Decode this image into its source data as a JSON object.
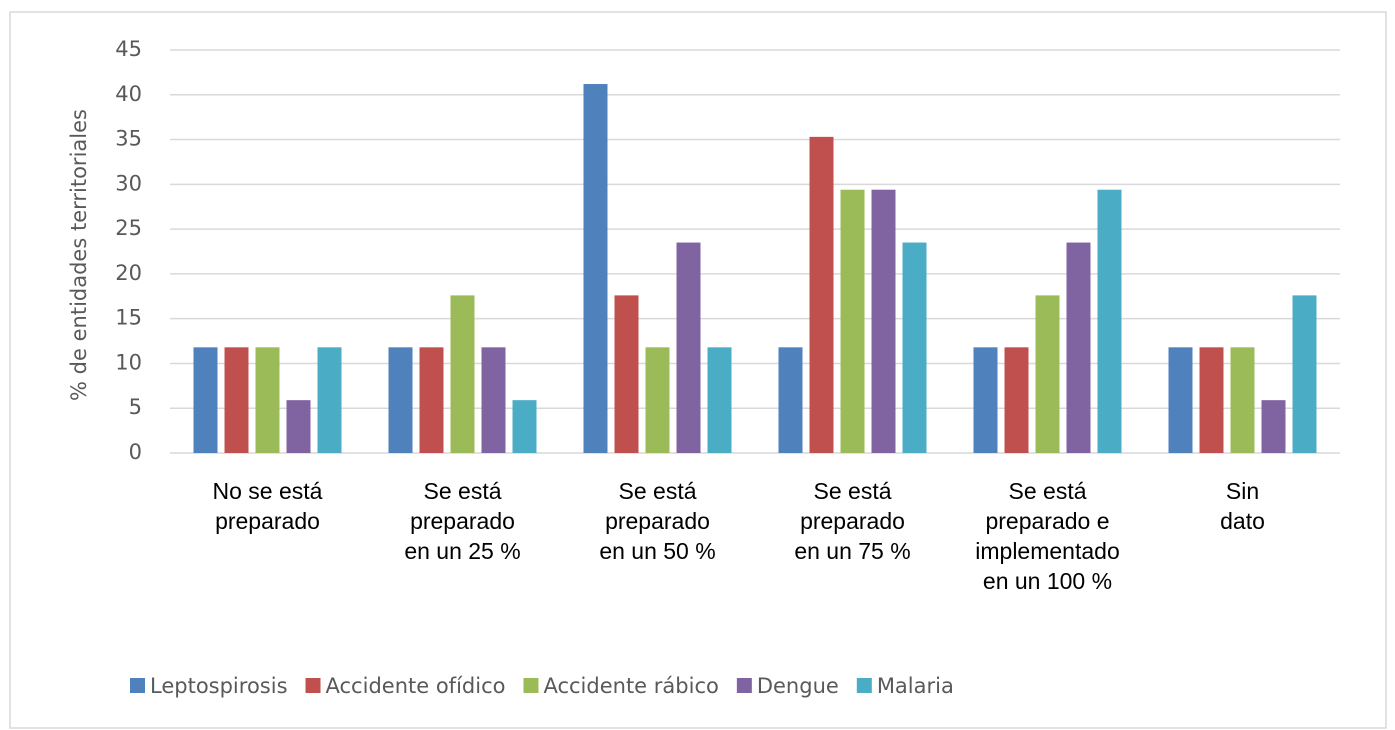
{
  "chart_data": {
    "type": "bar",
    "y_label": "% de entidades territoriales",
    "categories": [
      "No se está\npreparado",
      "Se está\npreparado\nen un 25 %",
      "Se está\npreparado\nen un 50 %",
      "Se está\npreparado\nen un 75 %",
      "Se está\npreparado e\nimplementado\nen un 100 %",
      "Sin\ndato"
    ],
    "series": [
      {
        "name": "Leptospirosis",
        "color": "#4f81bd",
        "values": [
          11.8,
          11.8,
          41.2,
          11.8,
          11.8,
          11.8
        ]
      },
      {
        "name": "Accidente ofídico",
        "color": "#c0504d",
        "values": [
          11.8,
          11.8,
          17.6,
          35.3,
          11.8,
          11.8
        ]
      },
      {
        "name": "Accidente rábico",
        "color": "#9bbb59",
        "values": [
          11.8,
          17.6,
          11.8,
          29.4,
          17.6,
          11.8
        ]
      },
      {
        "name": "Dengue",
        "color": "#8064a2",
        "values": [
          5.9,
          11.8,
          23.5,
          29.4,
          23.5,
          5.9
        ]
      },
      {
        "name": "Malaria",
        "color": "#4bacc6",
        "values": [
          11.8,
          5.9,
          11.8,
          23.5,
          29.4,
          17.6
        ]
      }
    ],
    "ylim": [
      0,
      45
    ],
    "yticks": [
      0,
      5,
      10,
      15,
      20,
      25,
      30,
      35,
      40,
      45
    ],
    "grid": true,
    "legend": "bottom"
  }
}
